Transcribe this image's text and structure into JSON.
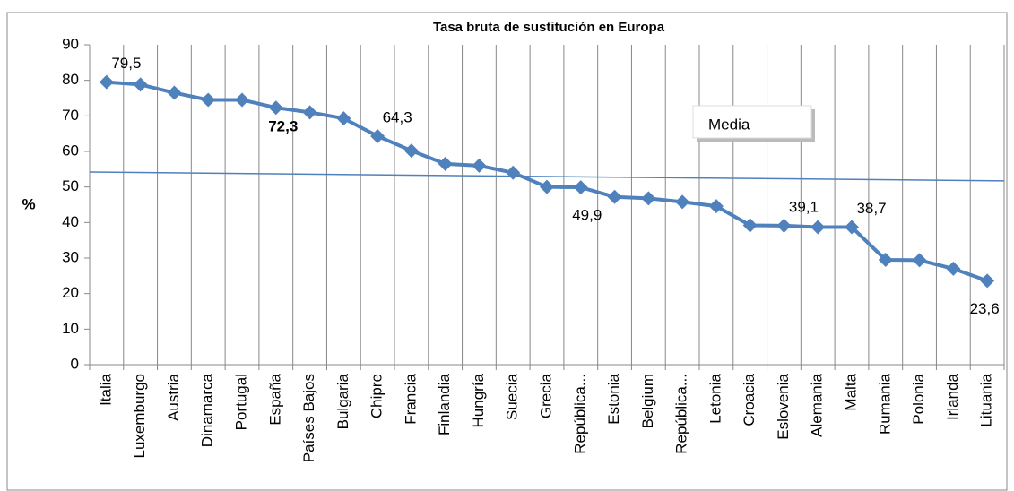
{
  "chart_data": {
    "type": "line",
    "title": "Tasa bruta de sustitución en Europa",
    "y_label": "%",
    "categories": [
      "Italia",
      "Luxemburgo",
      "Austria",
      "Dinamarca",
      "Portugal",
      "España",
      "Países Bajos",
      "Bulgaria",
      "Chipre",
      "Francia",
      "Finlandia",
      "Hungría",
      "Suecia",
      "Grecia",
      "República...",
      "Estonia",
      "Belgium",
      "República...",
      "Letonia",
      "Croacia",
      "Eslovenia",
      "Alemania",
      "Malta",
      "Rumania",
      "Polonia",
      "Irlanda",
      "Lituania"
    ],
    "series": [
      {
        "color": "#4f81bd",
        "values": [
          79.5,
          78.8,
          76.5,
          74.5,
          74.5,
          72.3,
          71,
          69.3,
          64.3,
          60.2,
          56.5,
          56,
          54,
          50,
          49.9,
          47.2,
          46.8,
          45.8,
          44.6,
          39.2,
          39.1,
          38.7,
          38.7,
          29.5,
          29.4,
          27,
          23.6
        ],
        "value_labels": [
          "79,5",
          null,
          null,
          null,
          null,
          "72,3",
          null,
          null,
          "64,3",
          null,
          null,
          null,
          null,
          null,
          "49,9",
          null,
          null,
          null,
          null,
          null,
          "39,1",
          null,
          "38,7",
          null,
          null,
          null,
          "23,6"
        ],
        "bold_labels": [
          5
        ]
      }
    ],
    "mean_line": {
      "name": "Media",
      "color": "#4f81bd",
      "values": [
        54.2,
        51.7
      ]
    },
    "ylim": [
      0,
      90
    ],
    "yticks": [
      0,
      10,
      20,
      30,
      40,
      50,
      60,
      70,
      80,
      90
    ],
    "grid": true
  }
}
